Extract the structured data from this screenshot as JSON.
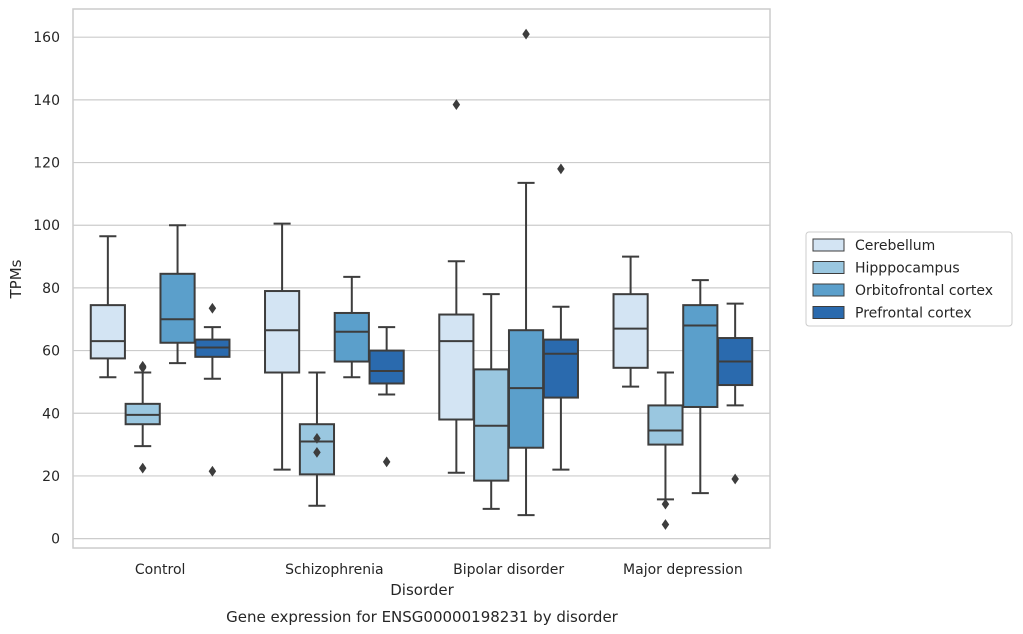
{
  "chart_data": {
    "type": "box",
    "caption": "Gene expression for ENSG00000198231 by disorder",
    "xlabel": "Disorder",
    "ylabel": "TPMs",
    "ylim": [
      -3,
      169
    ],
    "yticks": [
      0,
      20,
      40,
      60,
      80,
      100,
      120,
      140,
      160
    ],
    "grid": "horizontal",
    "legend_position": "right",
    "categories": [
      "Control",
      "Schizophrenia",
      "Bipolar disorder",
      "Major depression"
    ],
    "series": [
      {
        "name": "Cerebellum",
        "color": "#d3e4f3",
        "boxes": [
          {
            "whisker_low": 51.5,
            "q1": 57.5,
            "median": 63,
            "q3": 74.5,
            "whisker_high": 96.5,
            "outliers": []
          },
          {
            "whisker_low": 22,
            "q1": 53,
            "median": 66.5,
            "q3": 79,
            "whisker_high": 100.5,
            "outliers": []
          },
          {
            "whisker_low": 21,
            "q1": 38,
            "median": 63,
            "q3": 71.5,
            "whisker_high": 88.5,
            "outliers": [
              138.5
            ]
          },
          {
            "whisker_low": 48.5,
            "q1": 54.5,
            "median": 67,
            "q3": 78,
            "whisker_high": 90,
            "outliers": []
          }
        ]
      },
      {
        "name": "Hipppocampus",
        "color": "#9ac7e0",
        "boxes": [
          {
            "whisker_low": 29.5,
            "q1": 36.5,
            "median": 39.5,
            "q3": 43,
            "whisker_high": 53,
            "outliers": [
              55,
              54.5,
              22.5
            ]
          },
          {
            "whisker_low": 10.5,
            "q1": 20.5,
            "median": 31,
            "q3": 36.5,
            "whisker_high": 53,
            "outliers": [
              32,
              27.5
            ]
          },
          {
            "whisker_low": 9.5,
            "q1": 18.5,
            "median": 36,
            "q3": 54,
            "whisker_high": 78,
            "outliers": []
          },
          {
            "whisker_low": 12.5,
            "q1": 30,
            "median": 34.5,
            "q3": 42.5,
            "whisker_high": 53,
            "outliers": [
              4.5,
              11
            ]
          }
        ]
      },
      {
        "name": "Orbitofrontal cortex",
        "color": "#5b9fcb",
        "boxes": [
          {
            "whisker_low": 56,
            "q1": 62.5,
            "median": 70,
            "q3": 84.5,
            "whisker_high": 100,
            "outliers": []
          },
          {
            "whisker_low": 51.5,
            "q1": 56.5,
            "median": 66,
            "q3": 72,
            "whisker_high": 83.5,
            "outliers": []
          },
          {
            "whisker_low": 7.5,
            "q1": 29,
            "median": 48,
            "q3": 66.5,
            "whisker_high": 113.5,
            "outliers": [
              161
            ]
          },
          {
            "whisker_low": 14.5,
            "q1": 42,
            "median": 68,
            "q3": 74.5,
            "whisker_high": 82.5,
            "outliers": []
          }
        ]
      },
      {
        "name": "Prefrontal cortex",
        "color": "#2a6aae",
        "boxes": [
          {
            "whisker_low": 51,
            "q1": 58,
            "median": 61,
            "q3": 63.5,
            "whisker_high": 67.5,
            "outliers": [
              73.5,
              21.5
            ]
          },
          {
            "whisker_low": 46,
            "q1": 49.5,
            "median": 53.5,
            "q3": 60,
            "whisker_high": 67.5,
            "outliers": [
              24.5
            ]
          },
          {
            "whisker_low": 22,
            "q1": 45,
            "median": 59,
            "q3": 63.5,
            "whisker_high": 74,
            "outliers": [
              118
            ]
          },
          {
            "whisker_low": 42.5,
            "q1": 49,
            "median": 56.5,
            "q3": 64,
            "whisker_high": 75,
            "outliers": [
              19
            ]
          }
        ]
      }
    ]
  }
}
